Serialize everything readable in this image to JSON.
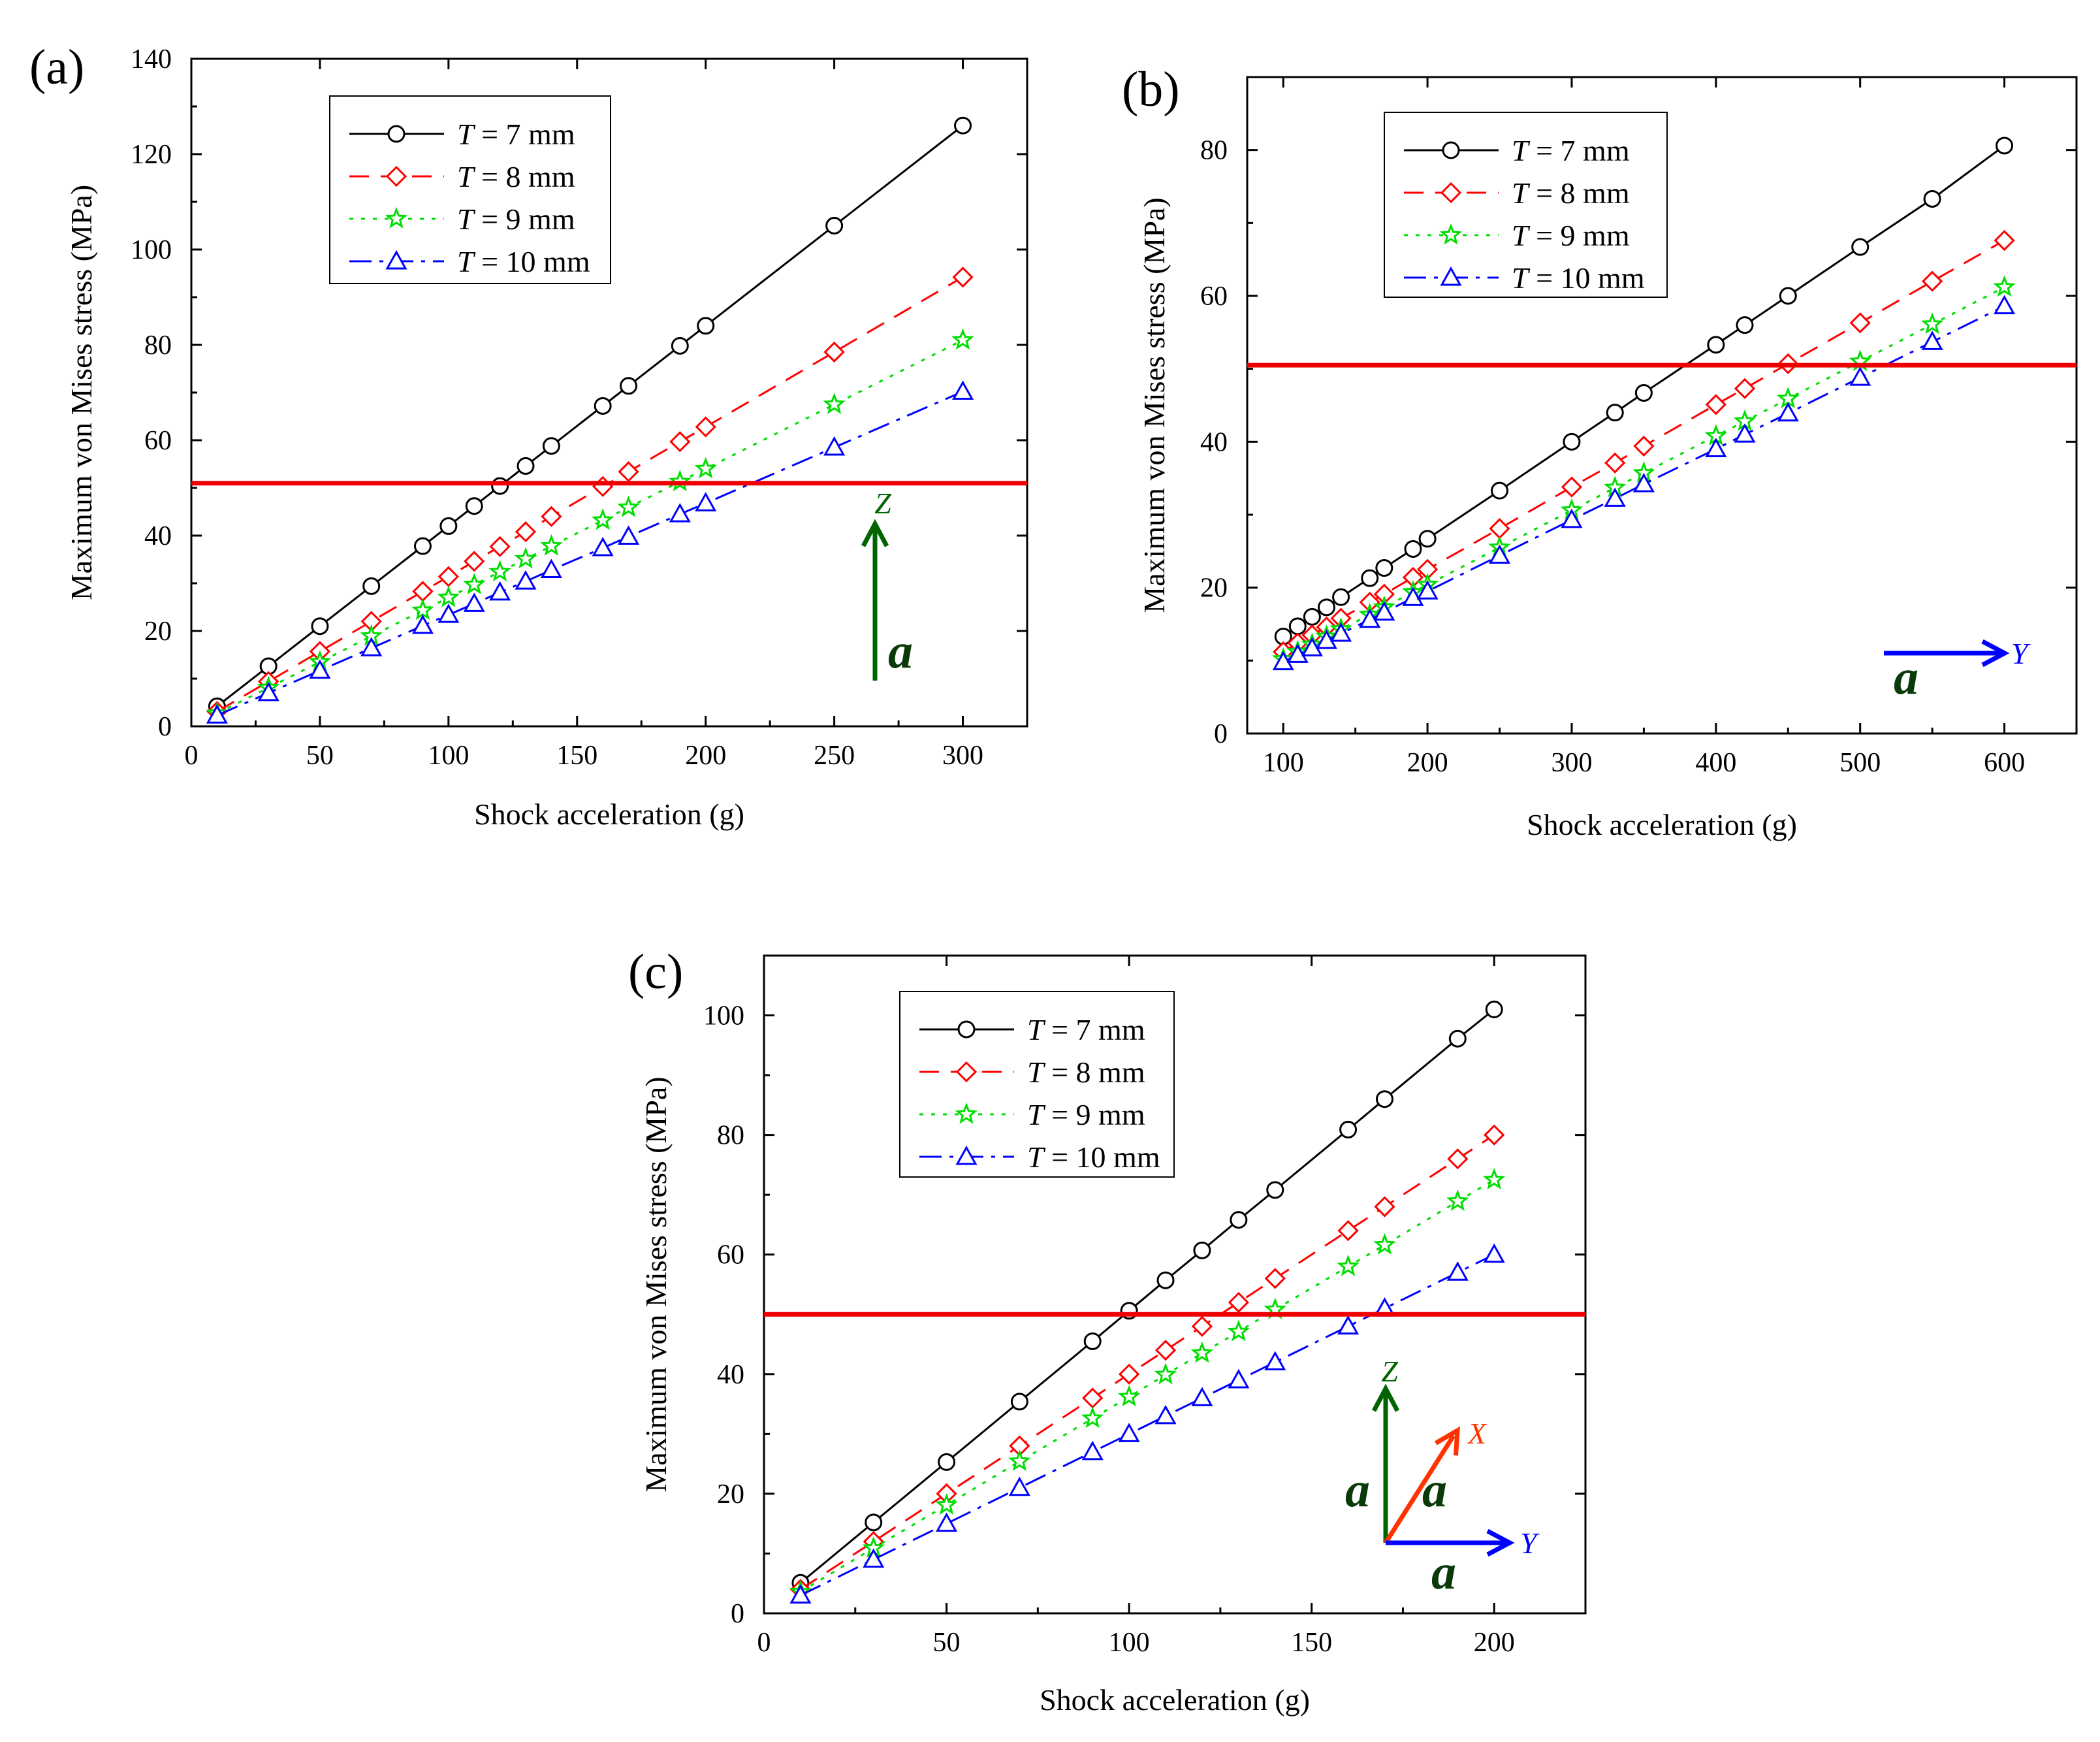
{
  "chart_data": [
    {
      "type": "line",
      "panel": "(a)",
      "xlabel": "Shock acceleration (g)",
      "ylabel": "Maximum von Mises stress (MPa)",
      "xlim": [
        0,
        325
      ],
      "ylim": [
        0,
        140
      ],
      "xticks": [
        0,
        50,
        100,
        150,
        200,
        250,
        300
      ],
      "yticks": [
        0,
        20,
        40,
        60,
        80,
        100,
        120,
        140
      ],
      "legend_position": "top-left",
      "threshold": 51,
      "x": [
        10,
        30,
        50,
        70,
        90,
        100,
        110,
        120,
        130,
        140,
        160,
        170,
        190,
        200,
        250,
        300
      ],
      "series": [
        {
          "name": "T = 7 mm",
          "legend_italic": "T",
          "legend_rest": " = 7 mm",
          "color": "#000000",
          "marker": "circle",
          "dash": "solid",
          "values": [
            4.2,
            12.6,
            21.0,
            29.4,
            37.8,
            42.0,
            46.2,
            50.4,
            54.6,
            58.8,
            67.2,
            71.4,
            79.8,
            84.0,
            105.0,
            126.0
          ]
        },
        {
          "name": "T = 8 mm",
          "legend_italic": "T",
          "legend_rest": " = 8 mm",
          "color": "#ff0000",
          "marker": "diamond",
          "dash": "dash",
          "values": [
            3.1,
            9.4,
            15.7,
            22.0,
            28.3,
            31.4,
            34.6,
            37.7,
            40.8,
            44.0,
            50.3,
            53.4,
            59.7,
            62.8,
            78.5,
            94.2
          ]
        },
        {
          "name": "T = 9 mm",
          "legend_italic": "T",
          "legend_rest": " = 9 mm",
          "color": "#00dd00",
          "marker": "star",
          "dash": "dot",
          "values": [
            2.7,
            8.1,
            13.5,
            18.9,
            24.3,
            27.0,
            29.7,
            32.4,
            35.1,
            37.8,
            43.2,
            45.9,
            51.3,
            54.0,
            67.5,
            81.0
          ]
        },
        {
          "name": "T = 10 mm",
          "legend_italic": "T",
          "legend_rest": " = 10 mm",
          "color": "#0000ff",
          "marker": "triangle",
          "dash": "dashdot",
          "values": [
            2.3,
            7.0,
            11.7,
            16.4,
            21.1,
            23.4,
            25.7,
            28.1,
            30.4,
            32.8,
            37.4,
            39.8,
            44.5,
            46.8,
            58.5,
            70.2
          ]
        }
      ],
      "arrows": [
        {
          "label": "Z",
          "direction": "up",
          "color": "#006400",
          "accel_label": "a"
        }
      ]
    },
    {
      "type": "line",
      "panel": "(b)",
      "xlabel": "Shock acceleration (g)",
      "ylabel": "Maximum von Mises stress (MPa)",
      "xlim": [
        75,
        650
      ],
      "ylim": [
        0,
        90
      ],
      "xticks": [
        100,
        200,
        300,
        400,
        500,
        600
      ],
      "yticks": [
        0,
        20,
        40,
        60,
        80
      ],
      "legend_position": "top-left",
      "threshold": 50.5,
      "x": [
        100,
        110,
        120,
        130,
        140,
        160,
        170,
        190,
        200,
        250,
        300,
        330,
        350,
        400,
        420,
        450,
        500,
        550,
        600
      ],
      "series": [
        {
          "name": "T = 7 mm",
          "legend_italic": "T",
          "legend_rest": " = 7 mm",
          "color": "#000000",
          "marker": "circle",
          "dash": "solid",
          "values": [
            13.3,
            14.7,
            16.0,
            17.3,
            18.7,
            21.3,
            22.7,
            25.3,
            26.7,
            33.3,
            40.0,
            44.0,
            46.7,
            53.3,
            56.0,
            60.0,
            66.7,
            73.3,
            80.6
          ]
        },
        {
          "name": "T = 8 mm",
          "legend_italic": "T",
          "legend_rest": " = 8 mm",
          "color": "#ff0000",
          "marker": "diamond",
          "dash": "dash",
          "values": [
            11.2,
            12.4,
            13.5,
            14.6,
            15.8,
            18.0,
            19.1,
            21.4,
            22.5,
            28.1,
            33.8,
            37.1,
            39.4,
            45.1,
            47.3,
            50.7,
            56.3,
            62.0,
            67.6
          ]
        },
        {
          "name": "T = 9 mm",
          "legend_italic": "T",
          "legend_rest": " = 9 mm",
          "color": "#00dd00",
          "marker": "star",
          "dash": "dot",
          "values": [
            10.2,
            11.2,
            12.2,
            13.3,
            14.3,
            16.3,
            17.3,
            19.4,
            20.4,
            25.5,
            30.6,
            33.7,
            35.7,
            40.8,
            42.8,
            45.9,
            51.0,
            56.1,
            61.2
          ]
        },
        {
          "name": "T = 10 mm",
          "legend_italic": "T",
          "legend_rest": " = 10 mm",
          "color": "#0000ff",
          "marker": "triangle",
          "dash": "dashdot",
          "values": [
            9.8,
            10.8,
            11.7,
            12.7,
            13.7,
            15.6,
            16.6,
            18.6,
            19.5,
            24.4,
            29.3,
            32.2,
            34.2,
            39.0,
            41.0,
            43.9,
            48.8,
            53.7,
            58.6
          ]
        }
      ],
      "arrows": [
        {
          "label": "Y",
          "direction": "right",
          "color": "#0000ff",
          "accel_label": "a"
        }
      ]
    },
    {
      "type": "line",
      "panel": "(c)",
      "xlabel": "Shock acceleration (g)",
      "ylabel": "Maximum von Mises stress (MPa)",
      "xlim": [
        0,
        225
      ],
      "ylim": [
        0,
        110
      ],
      "xticks": [
        0,
        50,
        100,
        150,
        200
      ],
      "yticks": [
        0,
        20,
        40,
        60,
        80,
        100
      ],
      "legend_position": "top-left",
      "threshold": 50,
      "x": [
        10,
        30,
        50,
        70,
        90,
        100,
        110,
        120,
        130,
        140,
        160,
        170,
        190,
        200
      ],
      "series": [
        {
          "name": "T = 7 mm",
          "legend_italic": "T",
          "legend_rest": " = 7 mm",
          "color": "#000000",
          "marker": "circle",
          "dash": "solid",
          "values": [
            5.1,
            15.2,
            25.3,
            35.4,
            45.5,
            50.6,
            55.7,
            60.7,
            65.8,
            70.8,
            80.9,
            86.0,
            96.1,
            101.0
          ]
        },
        {
          "name": "T = 8 mm",
          "legend_italic": "T",
          "legend_rest": " = 8 mm",
          "color": "#ff0000",
          "marker": "diamond",
          "dash": "dash",
          "values": [
            4.0,
            12.0,
            20.0,
            28.0,
            36.0,
            40.0,
            44.0,
            48.0,
            52.0,
            56.0,
            64.0,
            68.0,
            76.0,
            80.0
          ]
        },
        {
          "name": "T = 9 mm",
          "legend_italic": "T",
          "legend_rest": " = 9 mm",
          "color": "#00dd00",
          "marker": "star",
          "dash": "dot",
          "values": [
            3.6,
            10.9,
            18.1,
            25.4,
            32.6,
            36.2,
            39.9,
            43.5,
            47.1,
            50.8,
            58.0,
            61.6,
            68.9,
            72.5
          ]
        },
        {
          "name": "T = 10 mm",
          "legend_italic": "T",
          "legend_rest": " = 10 mm",
          "color": "#0000ff",
          "marker": "triangle",
          "dash": "dashdot",
          "values": [
            3.0,
            9.0,
            15.0,
            21.0,
            27.0,
            30.0,
            33.0,
            36.0,
            39.0,
            42.0,
            48.0,
            51.0,
            57.0,
            60.0
          ]
        }
      ],
      "arrows": [
        {
          "label": "Z",
          "direction": "up",
          "color": "#006400",
          "accel_label": "a"
        },
        {
          "label": "X",
          "direction": "diagonal",
          "color": "#ff3300",
          "accel_label": "a"
        },
        {
          "label": "Y",
          "direction": "right",
          "color": "#0000ff",
          "accel_label": "a"
        }
      ]
    }
  ]
}
